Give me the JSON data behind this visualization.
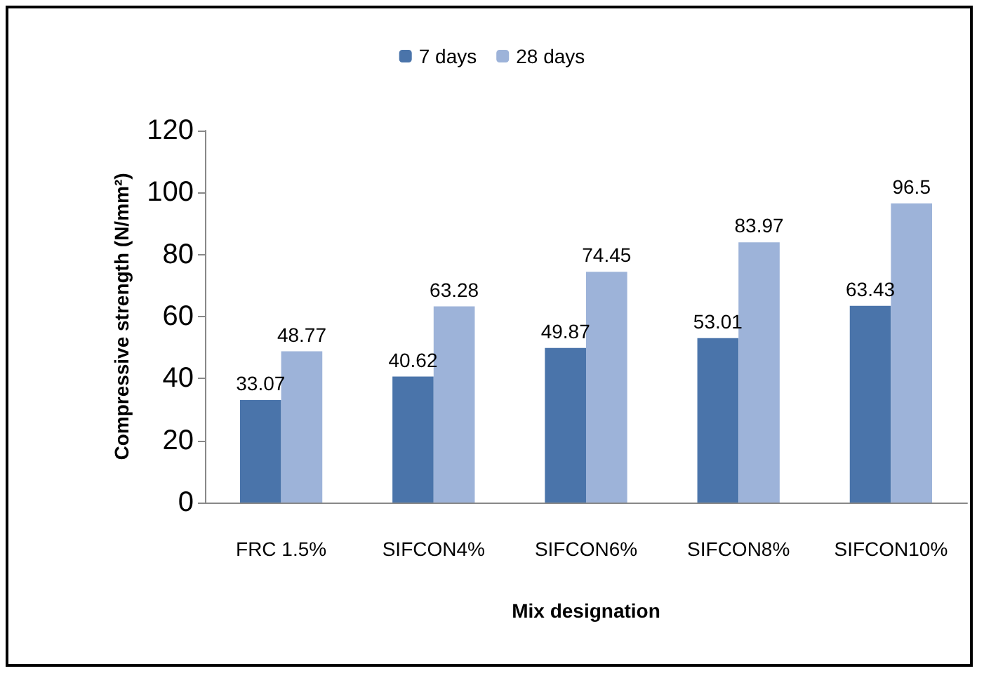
{
  "chart_data": {
    "type": "bar",
    "xlabel": "Mix designation",
    "ylabel": "Compressive strength (N/mm²)",
    "categories": [
      "FRC 1.5%",
      "SIFCON4%",
      "SIFCON6%",
      "SIFCON8%",
      "SIFCON10%"
    ],
    "series": [
      {
        "name": "7 days",
        "color": "#4a74aa",
        "values": [
          33.07,
          40.62,
          49.87,
          53.01,
          63.43
        ]
      },
      {
        "name": "28 days",
        "color": "#9db3d9",
        "values": [
          48.77,
          63.28,
          74.45,
          83.97,
          96.5
        ]
      }
    ],
    "ylim": [
      0,
      120
    ],
    "yticks": [
      0,
      20,
      40,
      60,
      80,
      100,
      120
    ],
    "grid": false,
    "legend": "top",
    "data_labels": true
  }
}
